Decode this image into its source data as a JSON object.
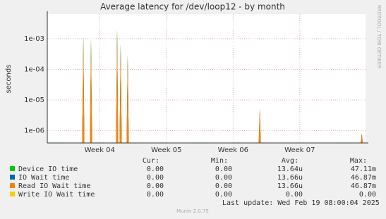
{
  "chart_data": {
    "type": "spike",
    "title": "Average latency for /dev/loop12 - by month",
    "y_label": "seconds",
    "side_text": "RRDTOOL / TOBI OETIKER",
    "log_y": true,
    "grid": true,
    "xlim": [
      0,
      33.4
    ],
    "xticks": [
      {
        "value": 5.5,
        "label": "Week 04"
      },
      {
        "value": 12.5,
        "label": "Week 05"
      },
      {
        "value": 19.5,
        "label": "Week 06"
      },
      {
        "value": 26.5,
        "label": "Week 07"
      }
    ],
    "ylim": [
      4e-07,
      0.0063
    ],
    "yticks": [
      {
        "value": 1e-06,
        "label": "1e-06"
      },
      {
        "value": 1e-05,
        "label": "1e-05"
      },
      {
        "value": 0.0001,
        "label": "1e-04"
      },
      {
        "value": 0.001,
        "label": "1e-03"
      }
    ],
    "x": [
      3.78,
      4.59,
      7.33,
      7.7,
      8.44,
      22.3,
      33.0
    ],
    "series": [
      {
        "name": "Device IO time",
        "color": "#00cc00",
        "values": [
          0.0011,
          0.0009,
          0.002,
          0.00065,
          0.00028,
          5e-06,
          8e-07
        ]
      },
      {
        "name": "IO Wait time",
        "color": "#0066b3",
        "values": [
          0.0011,
          0.0009,
          0.002,
          0.00065,
          0.00028,
          5e-06,
          8e-07
        ]
      },
      {
        "name": "Read IO Wait time",
        "color": "#ff8000",
        "values": [
          0.0011,
          0.0009,
          0.002,
          0.00065,
          0.00028,
          5e-06,
          8e-07
        ]
      },
      {
        "name": "Write IO Wait time",
        "color": "#ffcc00",
        "values": [
          null,
          null,
          null,
          null,
          null,
          null,
          null
        ]
      }
    ],
    "legend_headers": [
      "Cur:",
      "Min:",
      "Avg:",
      "Max:"
    ],
    "legend_rows": [
      [
        "0.00",
        "0.00",
        "13.64u",
        "47.11m"
      ],
      [
        "0.00",
        "0.00",
        "13.66u",
        "46.87m"
      ],
      [
        "0.00",
        "0.00",
        "13.66u",
        "46.87m"
      ],
      [
        "0.00",
        "0.00",
        "0.00",
        "0.00"
      ]
    ],
    "last_update": "Last update: Wed Feb 19 08:00:04 2025",
    "footer": "Munin 2.0.75"
  }
}
